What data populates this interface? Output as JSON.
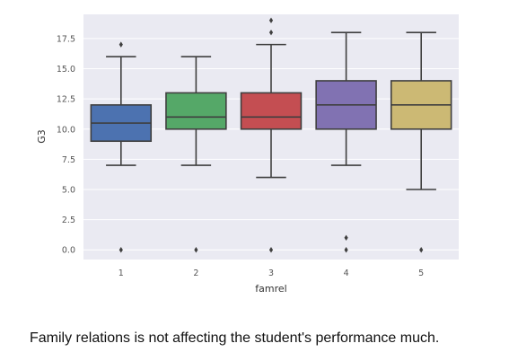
{
  "chart_data": {
    "type": "box",
    "xlabel": "famrel",
    "ylabel": "G3",
    "categories": [
      "1",
      "2",
      "3",
      "4",
      "5"
    ],
    "ylim": [
      -0.8,
      19.5
    ],
    "yticks": [
      "0.0",
      "2.5",
      "5.0",
      "7.5",
      "10.0",
      "12.5",
      "15.0",
      "17.5"
    ],
    "grid": true,
    "boxes": [
      {
        "category": "1",
        "whisker_low": 7,
        "q1": 9,
        "median": 10.5,
        "q3": 12,
        "whisker_high": 16,
        "outliers": [
          17,
          0
        ],
        "color": "#4c72b0"
      },
      {
        "category": "2",
        "whisker_low": 7,
        "q1": 10,
        "median": 11,
        "q3": 13,
        "whisker_high": 16,
        "outliers": [
          0
        ],
        "color": "#55a868"
      },
      {
        "category": "3",
        "whisker_low": 6,
        "q1": 10,
        "median": 11,
        "q3": 13,
        "whisker_high": 17,
        "outliers": [
          19,
          18,
          0
        ],
        "color": "#c44e52"
      },
      {
        "category": "4",
        "whisker_low": 7,
        "q1": 10,
        "median": 12,
        "q3": 14,
        "whisker_high": 18,
        "outliers": [
          1,
          0
        ],
        "color": "#8172b2"
      },
      {
        "category": "5",
        "whisker_low": 5,
        "q1": 10,
        "median": 12,
        "q3": 14,
        "whisker_high": 18,
        "outliers": [
          0
        ],
        "color": "#ccb974"
      }
    ],
    "colors": {
      "background": "#eaeaf2",
      "grid": "#ffffff",
      "line": "#3f3f3f"
    }
  },
  "caption": "Family relations is not affecting the student's performance much."
}
